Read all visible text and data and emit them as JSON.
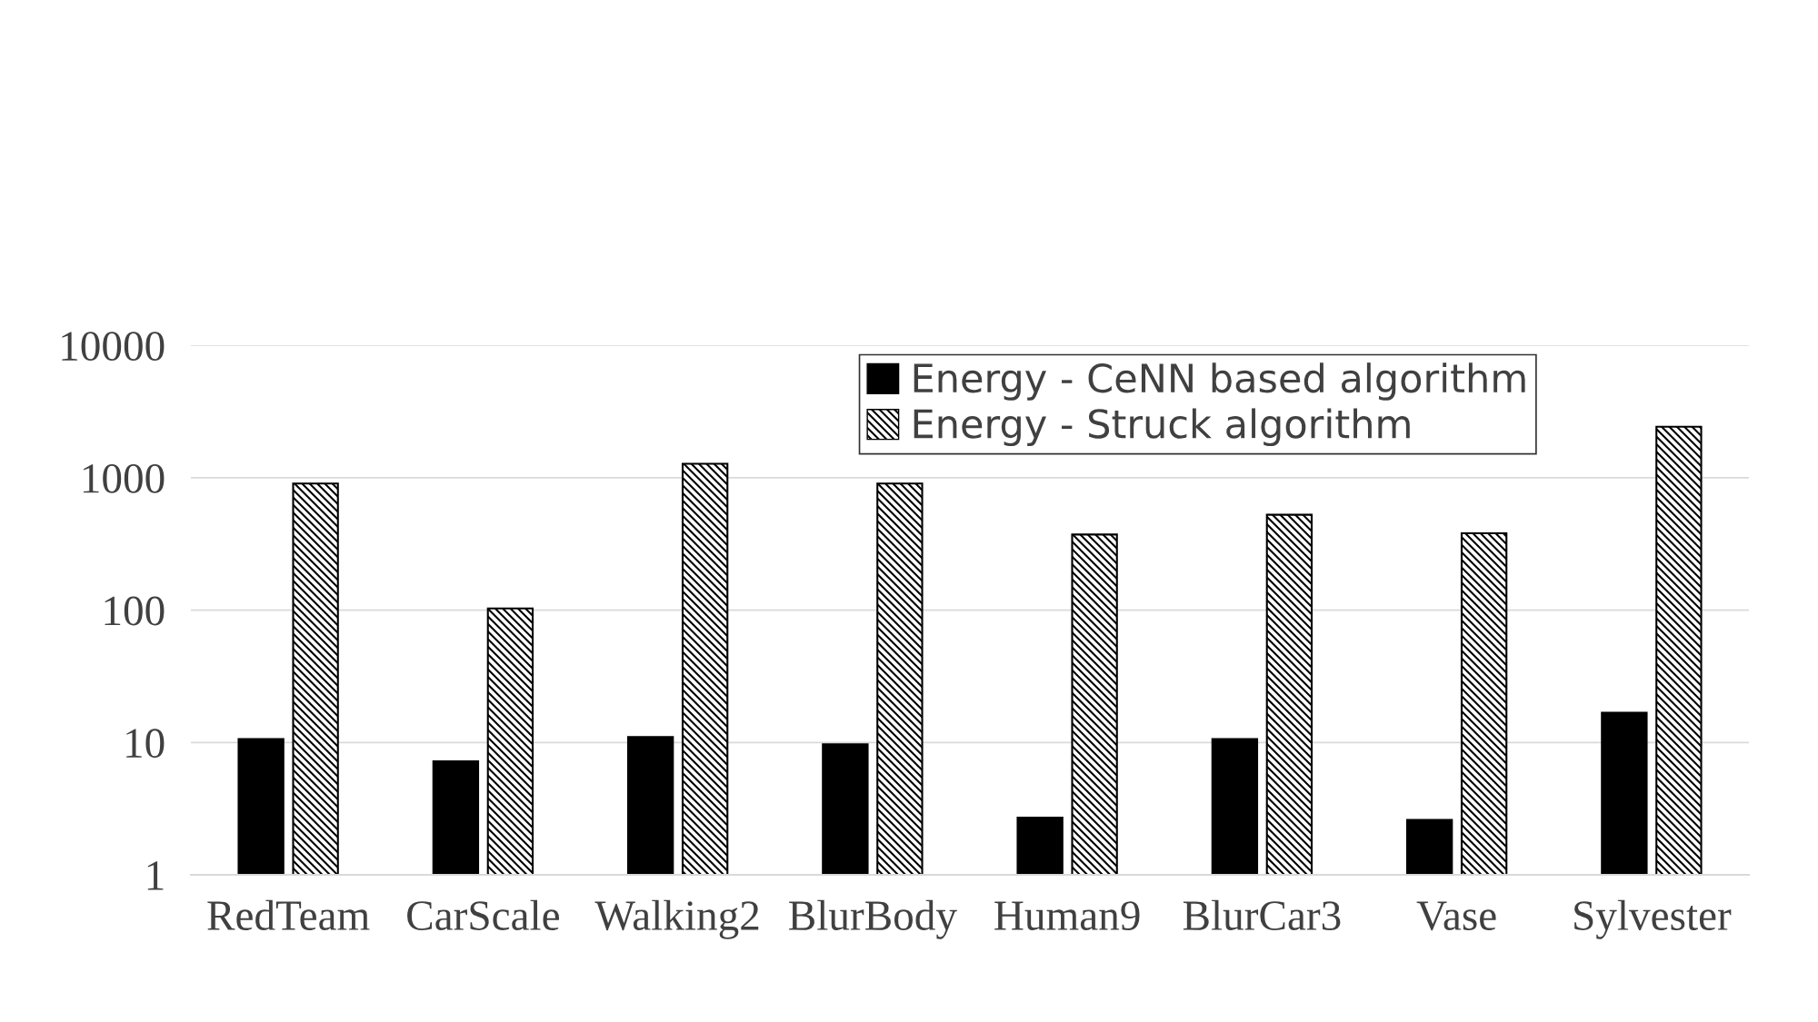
{
  "chart_data": {
    "type": "bar",
    "categories": [
      "RedTeam",
      "CarScale",
      "Walking2",
      "BlurBody",
      "Human9",
      "BlurCar3",
      "Vase",
      "Sylvester"
    ],
    "series": [
      {
        "name": "Energy - CeNN based algorithm",
        "color": "#000000",
        "values": [
          10.6,
          7.2,
          11,
          9.7,
          2.7,
          10.6,
          2.6,
          16.8
        ]
      },
      {
        "name": "Energy - Struck algorithm",
        "color": "#000000",
        "values": [
          906,
          103,
          1275,
          906,
          373,
          526,
          381,
          2432
        ]
      }
    ],
    "log": true,
    "ylim": [
      1,
      10000
    ],
    "yticks": [
      1,
      10,
      100,
      1000,
      10000
    ],
    "grid": "y",
    "legend": "top"
  }
}
